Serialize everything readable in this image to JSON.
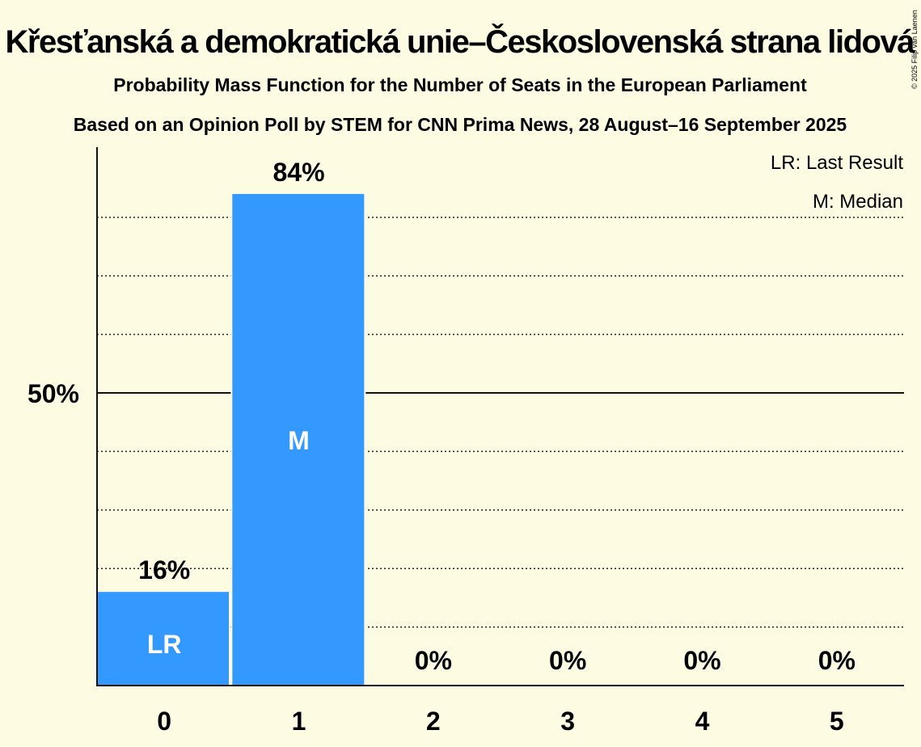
{
  "chart_data": {
    "type": "bar",
    "title": "Křesťanská a demokratická unie–Československá strana lidová",
    "subtitle": "Probability Mass Function for the Number of Seats in the European Parliament",
    "source": "Based on an Opinion Poll by STEM for CNN Prima News, 28 August–16 September 2025",
    "copyright": "© 2025 Filip van Laenen",
    "categories": [
      "0",
      "1",
      "2",
      "3",
      "4",
      "5"
    ],
    "values": [
      16,
      84,
      0,
      0,
      0,
      0
    ],
    "value_labels": [
      "16%",
      "84%",
      "0%",
      "0%",
      "0%",
      "0%"
    ],
    "inner_labels": [
      "LR",
      "M",
      "",
      "",
      "",
      ""
    ],
    "legend": [
      "LR: Last Result",
      "M: Median"
    ],
    "y_tick_label": "50%",
    "y_tick_value": 50,
    "gridlines": [
      10,
      20,
      30,
      40,
      60,
      70,
      80
    ],
    "ylim": [
      0,
      92
    ],
    "xlabel": "",
    "ylabel": "",
    "bar_color": "#3399ff",
    "background_color": "#fefbe3"
  }
}
